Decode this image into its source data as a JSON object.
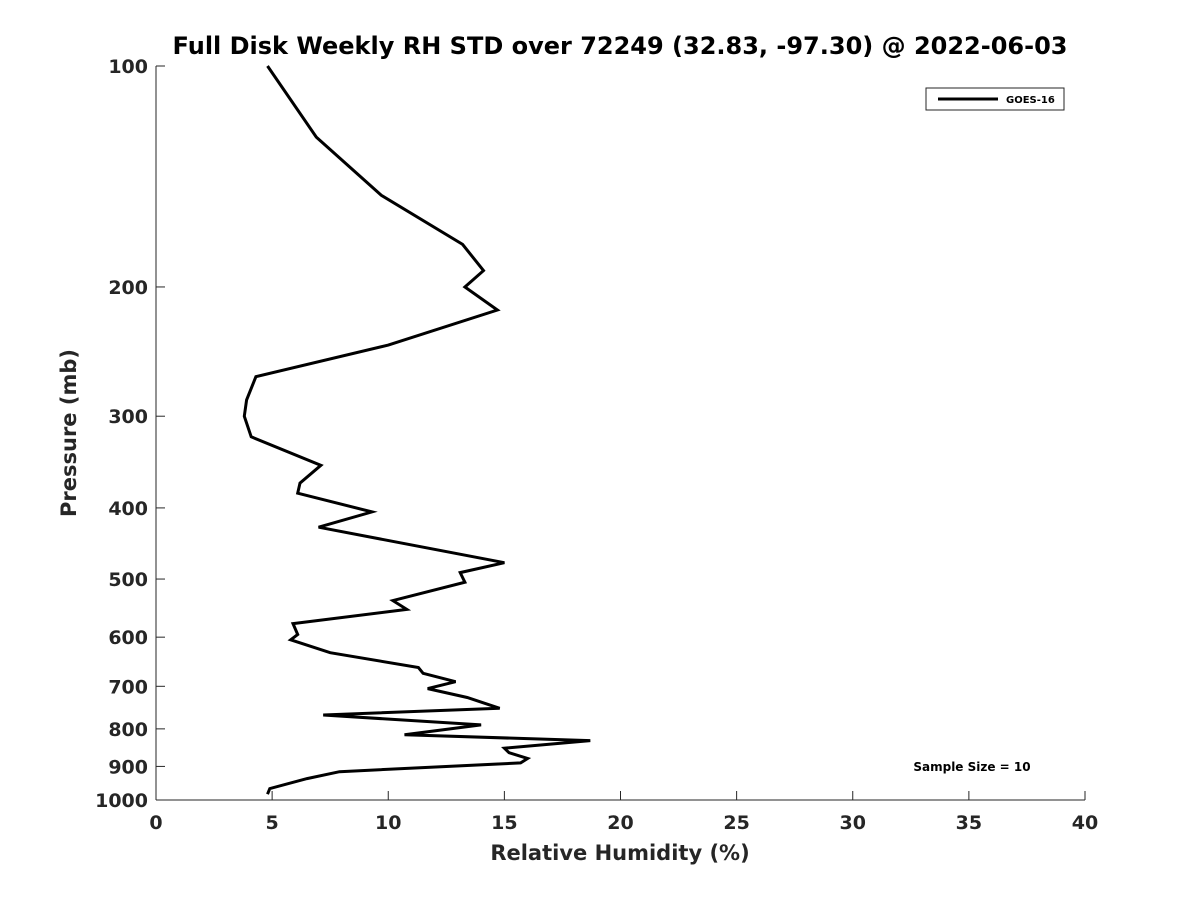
{
  "chart_data": {
    "type": "line",
    "title": "Full Disk Weekly RH STD over 72249 (32.83, -97.30) @ 2022-06-03",
    "xlabel": "Relative Humidity (%)",
    "ylabel": "Pressure (mb)",
    "xlim": [
      0,
      40
    ],
    "ylim": [
      100,
      1000
    ],
    "y_scale": "log",
    "y_reversed": true,
    "x_ticks": [
      "0",
      "5",
      "10",
      "15",
      "20",
      "25",
      "30",
      "35",
      "40"
    ],
    "y_ticks": [
      "100",
      "200",
      "300",
      "400",
      "500",
      "600",
      "700",
      "800",
      "900",
      "1000"
    ],
    "grid": false,
    "legend_position": "top-right",
    "annotation": "Sample Size = 10",
    "series": [
      {
        "name": "GOES-16",
        "color": "#000000",
        "points": [
          [
            4.8,
            100
          ],
          [
            6.9,
            125
          ],
          [
            9.7,
            150
          ],
          [
            13.2,
            175
          ],
          [
            14.1,
            190
          ],
          [
            13.3,
            200
          ],
          [
            14.7,
            215
          ],
          [
            10.0,
            240
          ],
          [
            4.3,
            265
          ],
          [
            3.9,
            285
          ],
          [
            3.8,
            300
          ],
          [
            4.1,
            320
          ],
          [
            7.1,
            350
          ],
          [
            6.2,
            370
          ],
          [
            6.1,
            382
          ],
          [
            9.3,
            405
          ],
          [
            7.0,
            425
          ],
          [
            15.0,
            475
          ],
          [
            13.1,
            490
          ],
          [
            13.3,
            505
          ],
          [
            10.2,
            535
          ],
          [
            10.8,
            550
          ],
          [
            5.9,
            575
          ],
          [
            6.1,
            595
          ],
          [
            5.8,
            605
          ],
          [
            7.5,
            630
          ],
          [
            11.3,
            660
          ],
          [
            11.5,
            672
          ],
          [
            12.9,
            690
          ],
          [
            11.7,
            705
          ],
          [
            13.4,
            725
          ],
          [
            14.8,
            750
          ],
          [
            7.2,
            766
          ],
          [
            14.0,
            790
          ],
          [
            10.7,
            815
          ],
          [
            18.7,
            830
          ],
          [
            15.0,
            850
          ],
          [
            15.2,
            862
          ],
          [
            16.0,
            878
          ],
          [
            15.7,
            890
          ],
          [
            7.9,
            915
          ],
          [
            6.5,
            935
          ],
          [
            4.9,
            965
          ],
          [
            4.8,
            982
          ]
        ]
      }
    ]
  }
}
